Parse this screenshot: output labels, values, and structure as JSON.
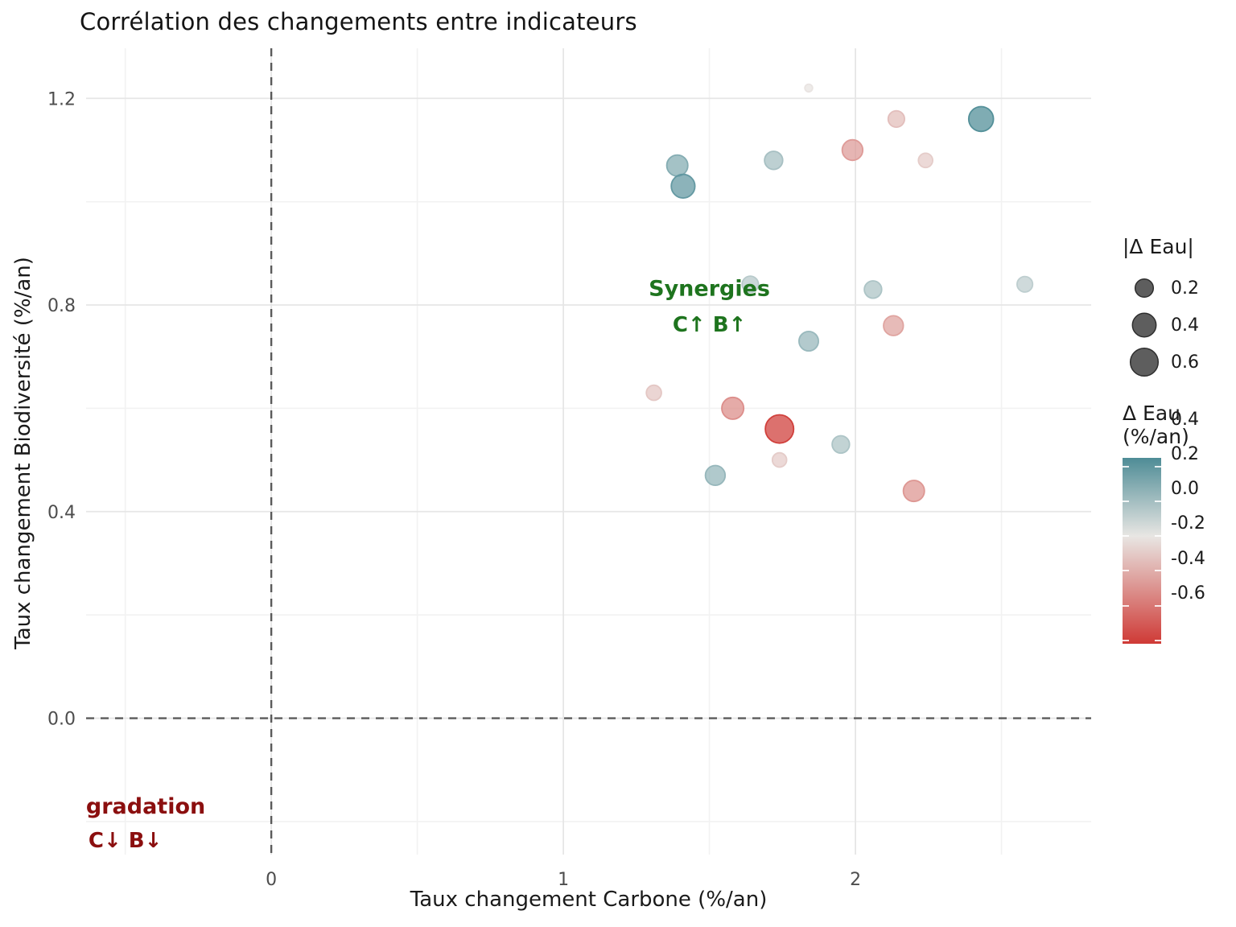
{
  "title": "Corrélation des changements entre indicateurs",
  "chart_data": {
    "type": "scatter",
    "title": "Corrélation des changements entre indicateurs",
    "xlabel": "Taux changement Carbone (%/an)",
    "ylabel": "Taux changement Biodiversité (%/an)",
    "xlim": [
      -0.634,
      2.807
    ],
    "ylim": [
      -0.264,
      1.297
    ],
    "x_major_ticks": [
      {
        "v": 0,
        "label": "0"
      },
      {
        "v": 1,
        "label": "1"
      },
      {
        "v": 2,
        "label": "2"
      }
    ],
    "x_minor_ticks": [
      -0.5,
      0.5,
      1.5,
      2.5
    ],
    "y_major_ticks": [
      {
        "v": 0.0,
        "label": "0.0"
      },
      {
        "v": 0.4,
        "label": "0.4"
      },
      {
        "v": 0.8,
        "label": "0.8"
      },
      {
        "v": 1.2,
        "label": "1.2"
      }
    ],
    "y_minor_ticks": [
      -0.2,
      0.2,
      0.6,
      1.0
    ],
    "grid": "on",
    "reference_lines": {
      "x": 0,
      "y": 0,
      "color": "#5a5a5a"
    },
    "color_scale": {
      "low": "#CF3A36",
      "mid": "#E8E6E3",
      "high": "#4E8C96",
      "domain": [
        -0.62,
        0.45
      ]
    },
    "points": [
      {
        "x": 1.84,
        "y": 1.22,
        "delta_eau": -0.01
      },
      {
        "x": 2.14,
        "y": 1.16,
        "delta_eau": -0.15
      },
      {
        "x": 2.43,
        "y": 1.16,
        "delta_eau": 0.45
      },
      {
        "x": 1.99,
        "y": 1.1,
        "delta_eau": -0.28
      },
      {
        "x": 2.24,
        "y": 1.08,
        "delta_eau": -0.1
      },
      {
        "x": 1.72,
        "y": 1.08,
        "delta_eau": 0.2
      },
      {
        "x": 1.39,
        "y": 1.07,
        "delta_eau": 0.3
      },
      {
        "x": 1.41,
        "y": 1.03,
        "delta_eau": 0.4
      },
      {
        "x": 1.64,
        "y": 0.84,
        "delta_eau": 0.15
      },
      {
        "x": 2.06,
        "y": 0.83,
        "delta_eau": 0.18
      },
      {
        "x": 2.58,
        "y": 0.84,
        "delta_eau": 0.13
      },
      {
        "x": 2.13,
        "y": 0.76,
        "delta_eau": -0.25
      },
      {
        "x": 1.84,
        "y": 0.73,
        "delta_eau": 0.24
      },
      {
        "x": 1.31,
        "y": 0.63,
        "delta_eau": -0.12
      },
      {
        "x": 1.58,
        "y": 0.6,
        "delta_eau": -0.33
      },
      {
        "x": 1.74,
        "y": 0.56,
        "delta_eau": -0.62
      },
      {
        "x": 1.95,
        "y": 0.53,
        "delta_eau": 0.18
      },
      {
        "x": 1.74,
        "y": 0.5,
        "delta_eau": -0.1
      },
      {
        "x": 1.52,
        "y": 0.47,
        "delta_eau": 0.25
      },
      {
        "x": 2.2,
        "y": 0.44,
        "delta_eau": -0.3
      }
    ],
    "annotations": [
      {
        "text": "Synergies",
        "x": 1.5,
        "y": 0.833,
        "color": "#1E741E",
        "size": 27,
        "bold": true
      },
      {
        "text": "C↑ B↑",
        "x": 1.5,
        "y": 0.763,
        "color": "#1E741E",
        "size": 26,
        "bold": true
      },
      {
        "text": "gradation",
        "x": -0.43,
        "y": -0.17,
        "color": "#8B0F0F",
        "size": 27,
        "bold": true
      },
      {
        "text": "C↓ B↓",
        "x": -0.5,
        "y": -0.236,
        "color": "#8B0F0F",
        "size": 26,
        "bold": true
      }
    ]
  },
  "legend": {
    "size": {
      "title": "|Δ Eau|",
      "items": [
        {
          "value": 0.2,
          "label": "0.2"
        },
        {
          "value": 0.4,
          "label": "0.4"
        },
        {
          "value": 0.6,
          "label": "0.6"
        }
      ],
      "swatch_fill": "#555555",
      "swatch_stroke": "#2e2e2e"
    },
    "color": {
      "title_line1": "Δ Eau",
      "title_line2": "(%/an)",
      "ticks": [
        {
          "value": 0.4,
          "label": "0.4"
        },
        {
          "value": 0.2,
          "label": "0.2"
        },
        {
          "value": 0.0,
          "label": "0.0"
        },
        {
          "value": -0.2,
          "label": "-0.2"
        },
        {
          "value": -0.4,
          "label": "-0.4"
        },
        {
          "value": -0.6,
          "label": "-0.6"
        }
      ]
    }
  }
}
